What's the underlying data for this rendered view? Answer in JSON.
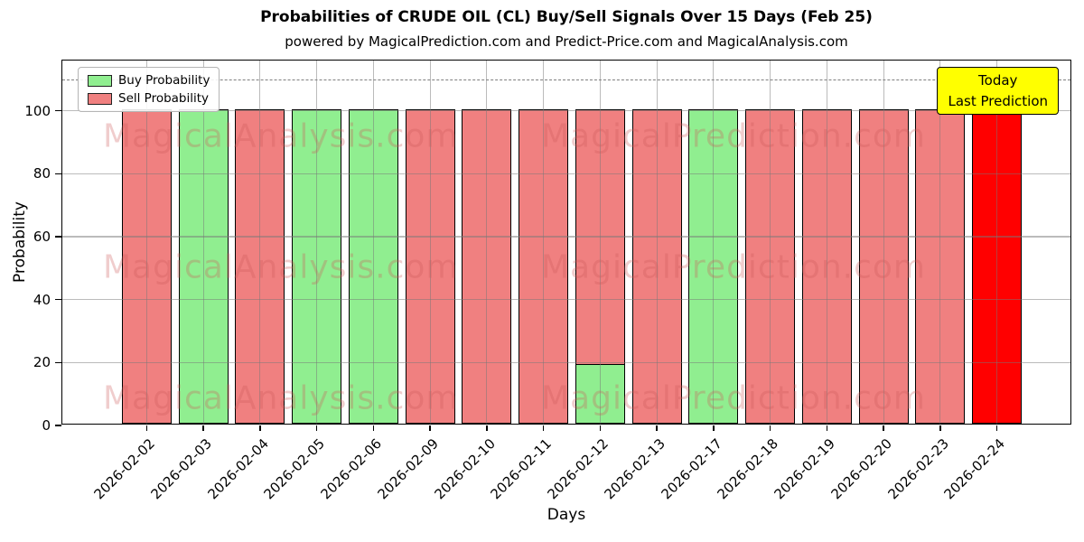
{
  "header": {
    "title": "Probabilities of CRUDE OIL (CL) Buy/Sell Signals Over 15 Days (Feb 25)",
    "subtitle": "powered by MagicalPrediction.com and Predict-Price.com and MagicalAnalysis.com"
  },
  "chart_data": {
    "type": "bar",
    "stacked": true,
    "title": "Probabilities of CRUDE OIL (CL) Buy/Sell Signals Over 15 Days (Feb 25)",
    "xlabel": "Days",
    "ylabel": "Probability",
    "ylim": [
      0,
      116
    ],
    "yticks": [
      0,
      20,
      40,
      60,
      80,
      100
    ],
    "grid": true,
    "categories": [
      "2026-02-02",
      "2026-02-03",
      "2026-02-04",
      "2026-02-05",
      "2026-02-06",
      "2026-02-09",
      "2026-02-10",
      "2026-02-11",
      "2026-02-12",
      "2026-02-13",
      "2026-02-17",
      "2026-02-18",
      "2026-02-19",
      "2026-02-20",
      "2026-02-23",
      "2026-02-24"
    ],
    "series": [
      {
        "name": "Buy Probability",
        "color": "#90EE90",
        "values": [
          0,
          100,
          0,
          100,
          100,
          0,
          0,
          0,
          19,
          0,
          100,
          0,
          0,
          0,
          0,
          0
        ]
      },
      {
        "name": "Sell Probability",
        "color": "#F08080",
        "values": [
          100,
          0,
          100,
          0,
          0,
          100,
          100,
          100,
          81,
          100,
          0,
          100,
          100,
          100,
          100,
          100
        ]
      }
    ],
    "highlight_bar": {
      "index": 15,
      "color": "#FF0000"
    },
    "threshold_line": {
      "value": 110,
      "style": "dashed",
      "color": "#7f7f7f"
    },
    "legend": {
      "position": "upper left"
    },
    "annotation_box": {
      "lines": [
        "Today",
        "Last Prediction"
      ],
      "bg_color": "#FFFF00"
    },
    "watermarks": [
      "MagicalAnalysis.com",
      "MagicalPrediction.com"
    ]
  }
}
